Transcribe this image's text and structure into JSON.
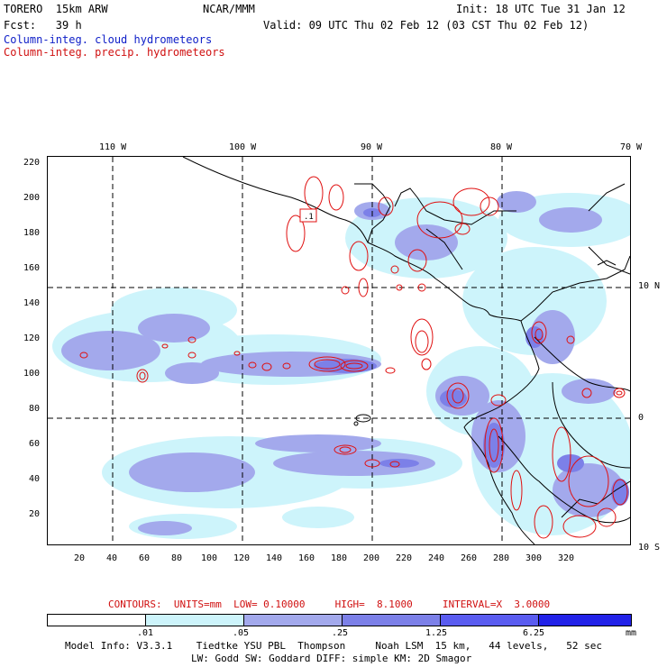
{
  "header": {
    "model_line": "TORERO  15km ARW",
    "org": "NCAR/MMM",
    "init": "Init: 18 UTC Tue 31 Jan 12",
    "fcst": "Fcst:   39 h",
    "valid": "Valid: 09 UTC Thu 02 Feb 12 (03 CST Thu 02 Feb 12)",
    "field_cloud": "Column-integ. cloud hydrometeors",
    "field_precip": "Column-integ. precip. hydrometeors"
  },
  "colors": {
    "cloud_text": "#1020c8",
    "precip_text": "#d01010",
    "contour": "#e01010",
    "coast": "#000000",
    "fill_levels": [
      "#ffffff",
      "#cdf4fb",
      "#a3a9ec",
      "#7c80e8",
      "#5a5cf0",
      "#2222e8"
    ]
  },
  "map": {
    "top_lon_labels": [
      "110 W",
      "100 W",
      "90 W",
      "80 W",
      "70 W"
    ],
    "right_lat_labels": [
      "10 N",
      "0",
      "10 S"
    ],
    "y_axis_labels": [
      "220",
      "200",
      "180",
      "160",
      "140",
      "120",
      "100",
      "80",
      "60",
      "40",
      "20"
    ],
    "x_axis_labels": [
      "20",
      "40",
      "60",
      "80",
      "100",
      "120",
      "140",
      "160",
      "180",
      "200",
      "220",
      "240",
      "260",
      "280",
      "300",
      "320"
    ],
    "box_label": ".1"
  },
  "footer": {
    "contours": "CONTOURS:  UNITS=mm  LOW= 0.10000     HIGH=  8.1000     INTERVAL=X  3.0000",
    "colorbar_ticks": [
      ".01",
      ".05",
      ".25",
      "1.25",
      "6.25"
    ],
    "colorbar_unit": "mm",
    "model_info_1": "Model Info: V3.3.1    Tiedtke YSU PBL  Thompson     Noah LSM  15 km,   44 levels,   52 sec",
    "model_info_2": "LW: Godd SW: Goddard DIFF: simple KM: 2D Smagor"
  }
}
